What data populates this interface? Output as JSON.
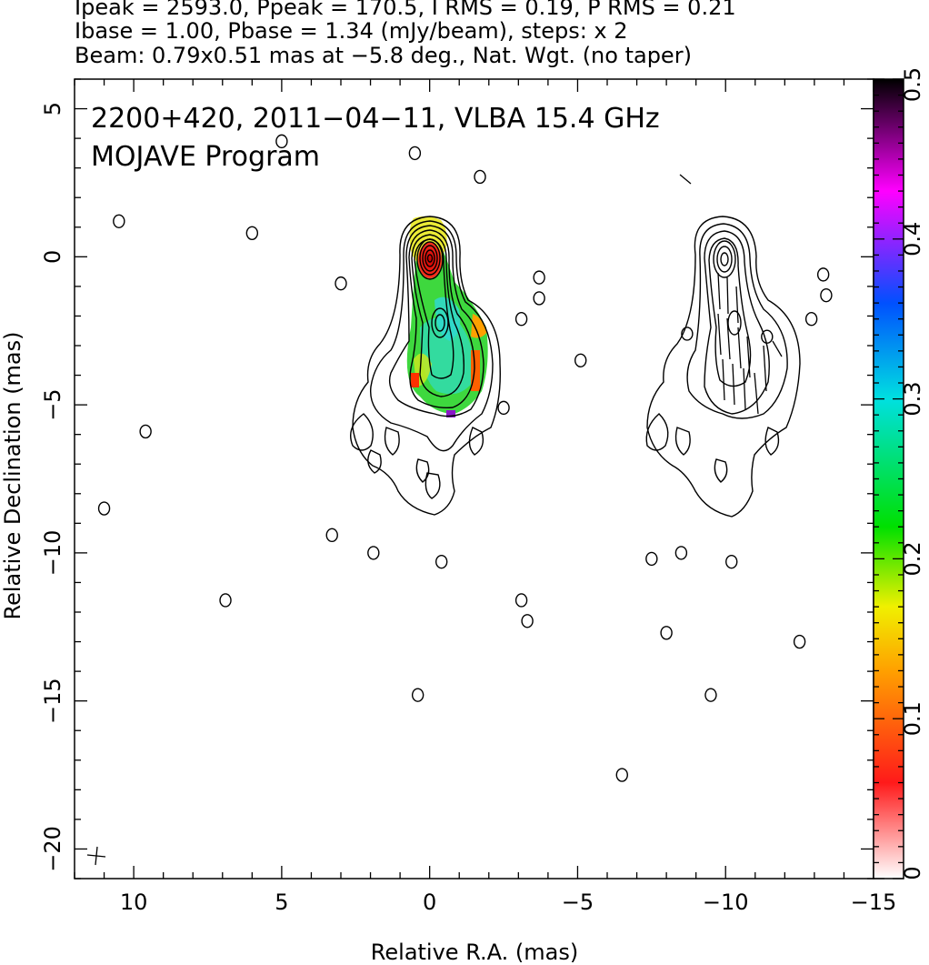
{
  "header": {
    "line1": "Ipeak = 2593.0, Ppeak = 170.5, I RMS = 0.19, P RMS = 0.21",
    "line2": "Ibase = 1.00, Pbase = 1.34 (mJy/beam), steps: x 2",
    "line3": "Beam: 0.79x0.51 mas at −5.8 deg., Nat. Wgt. (no taper)"
  },
  "chart_data": {
    "type": "heatmap",
    "title": "",
    "annotations": [
      "2200+420, 2011−04−11, VLBA 15.4 GHz",
      "MOJAVE Program"
    ],
    "xlabel": "Relative R.A. (mas)",
    "ylabel": "Relative Declination (mas)",
    "xlim": [
      12,
      -15
    ],
    "ylim": [
      -21,
      6
    ],
    "x_ticks": [
      10,
      5,
      0,
      -5,
      -10,
      -15
    ],
    "x_tick_labels": [
      "10",
      "5",
      "0",
      "−5",
      "−10",
      "−15"
    ],
    "y_ticks": [
      5,
      0,
      -5,
      -10,
      -15,
      -20
    ],
    "y_tick_labels": [
      "5",
      "0",
      "−5",
      "−10",
      "−15",
      "−20"
    ],
    "colorbar": {
      "range": [
        0,
        0.5
      ],
      "ticks": [
        0,
        0.1,
        0.2,
        0.3,
        0.4,
        0.5
      ],
      "tick_labels": [
        "0",
        "0.1",
        "0.2",
        "0.3",
        "0.4",
        "0.5"
      ],
      "colors": [
        "#ffffff",
        "#ff1a1a",
        "#ffa000",
        "#f0f000",
        "#00e000",
        "#00e0e0",
        "#0050ff",
        "#ff00ff",
        "#000000"
      ]
    },
    "panels": [
      "total intensity contours with fractional polarization color",
      "polarization vectors over contours"
    ],
    "core_position": [
      0,
      0
    ],
    "jet_extent": {
      "from": [
        0,
        0
      ],
      "to": [
        -1.2,
        -8.5
      ]
    },
    "offset_panel_shift_mas": -10,
    "isolated_contours": [
      [
        10.5,
        1.2
      ],
      [
        6.0,
        0.8
      ],
      [
        5.0,
        3.9
      ],
      [
        0.5,
        3.5
      ],
      [
        -1.7,
        2.7
      ],
      [
        3.0,
        -0.9
      ],
      [
        -3.7,
        -0.7
      ],
      [
        -3.7,
        -1.4
      ],
      [
        -3.1,
        -2.1
      ],
      [
        -5.1,
        -3.5
      ],
      [
        -2.5,
        -5.1
      ],
      [
        9.6,
        -5.9
      ],
      [
        11.0,
        -8.5
      ],
      [
        3.3,
        -9.4
      ],
      [
        1.9,
        -10.0
      ],
      [
        -0.4,
        -10.3
      ],
      [
        6.9,
        -11.6
      ],
      [
        -3.1,
        -11.6
      ],
      [
        -3.3,
        -12.3
      ],
      [
        0.4,
        -14.8
      ],
      [
        -6.5,
        -17.5
      ],
      [
        -7.5,
        -10.2
      ],
      [
        -8.5,
        -10.0
      ],
      [
        -10.2,
        -10.3
      ],
      [
        -8.0,
        -12.7
      ],
      [
        -12.5,
        -13.0
      ],
      [
        -9.5,
        -14.8
      ],
      [
        -8.7,
        -2.6
      ],
      [
        -11.4,
        -2.7
      ],
      [
        -13.3,
        -0.6
      ],
      [
        -13.4,
        -1.3
      ],
      [
        -12.9,
        -2.1
      ]
    ]
  }
}
